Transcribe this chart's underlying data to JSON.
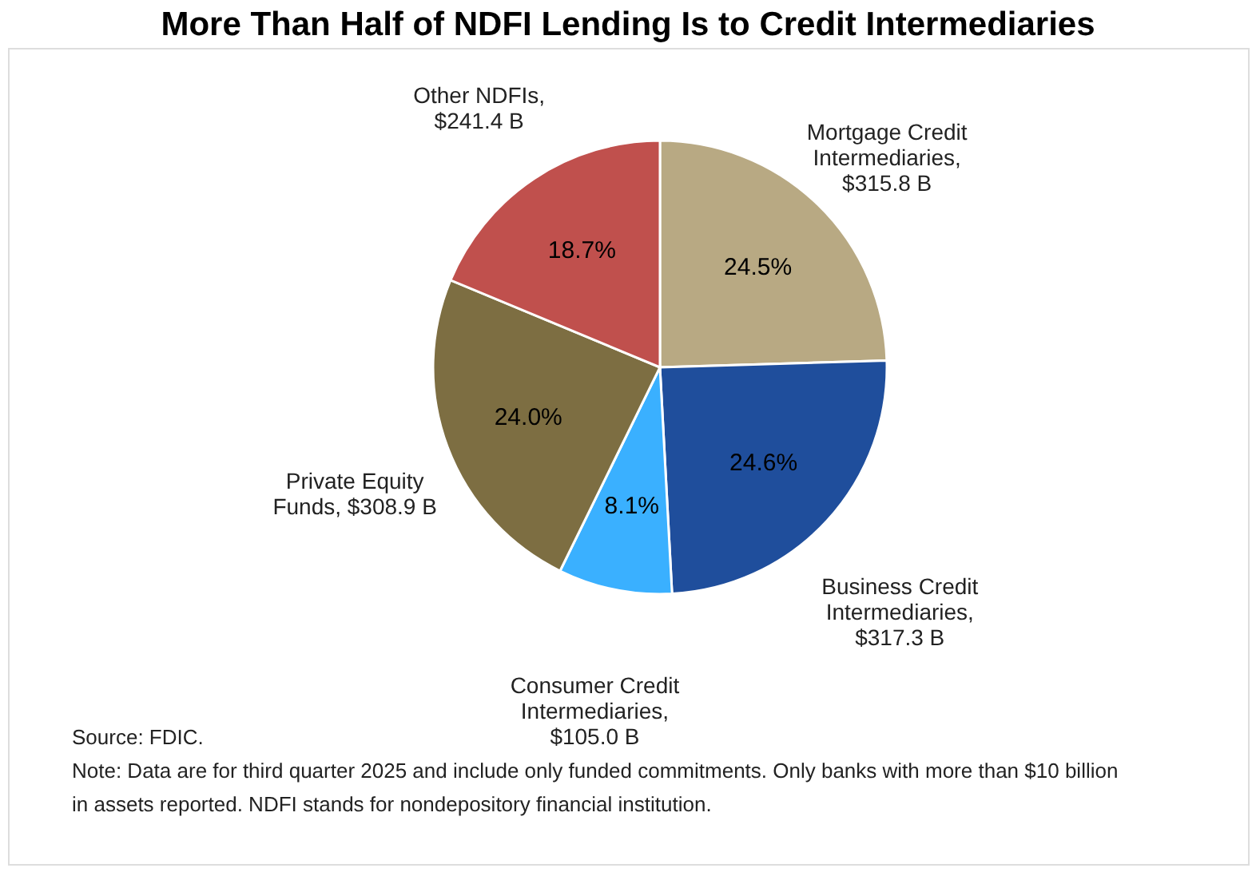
{
  "chart_data": {
    "type": "pie",
    "title": "More Than Half of NDFI Lending Is to Credit Intermediaries",
    "categories": [
      "Mortgage Credit Intermediaries, $315.8 B",
      "Business Credit Intermediaries, $317.3 B",
      "Consumer Credit Intermediaries, $105.0 B",
      "Private Equity Funds, $308.9 B",
      "Other NDFIs, $241.4 B"
    ],
    "values": [
      24.5,
      24.6,
      8.1,
      24.0,
      18.7
    ],
    "value_labels": [
      "24.5%",
      "24.6%",
      "8.1%",
      "24.0%",
      "18.7%"
    ],
    "colors": [
      "#b8a983",
      "#1f4e9c",
      "#3ab0ff",
      "#7d6e42",
      "#c0504d"
    ],
    "legend": false,
    "annotations": [
      "Source: FDIC.",
      "Note: Data are for third quarter 2025 and include only funded commitments. Only banks with more than $10 billion in assets reported. NDFI stands for nondepository financial institution."
    ]
  }
}
